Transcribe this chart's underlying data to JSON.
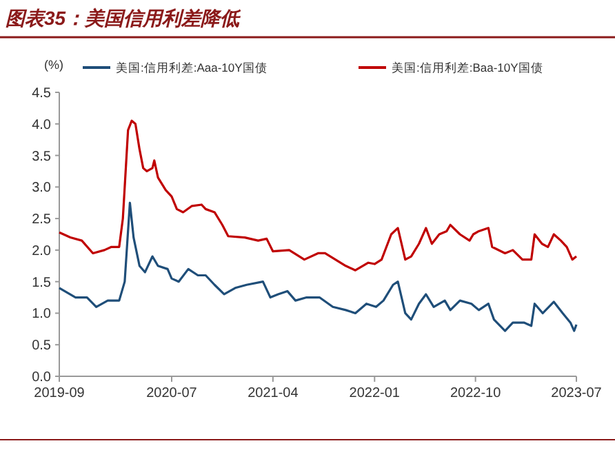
{
  "chart_data": {
    "type": "line",
    "title": "图表35：美国信用利差降低",
    "ylabel": "(%)",
    "xlim": [
      "2019-09",
      "2023-07"
    ],
    "xticks": [
      "2019-09",
      "2020-07",
      "2021-04",
      "2022-01",
      "2022-10",
      "2023-07"
    ],
    "ylim": [
      0,
      4.5
    ],
    "yticks": [
      {
        "value": 0,
        "label": "0.0"
      },
      {
        "value": 0.5,
        "label": "0.5"
      },
      {
        "value": 1,
        "label": "1.0"
      },
      {
        "value": 1.5,
        "label": "1.5"
      },
      {
        "value": 2,
        "label": "2.0"
      },
      {
        "value": 2.5,
        "label": "2.5"
      },
      {
        "value": 3,
        "label": "3.0"
      },
      {
        "value": 3.5,
        "label": "3.5"
      },
      {
        "value": 4,
        "label": "4.0"
      },
      {
        "value": 4.5,
        "label": "4.5"
      }
    ],
    "grid": false,
    "legend": "top",
    "line_style": "solid",
    "marker": "none",
    "series": [
      {
        "name": "美国:信用利差:Aaa-10Y国债",
        "color": "#1f4e79",
        "x": [
          "2019-09-01",
          "2019-10-15",
          "2019-11-15",
          "2019-12-10",
          "2020-01-10",
          "2020-02-10",
          "2020-02-25",
          "2020-03-10",
          "2020-03-20",
          "2020-04-05",
          "2020-04-20",
          "2020-05-10",
          "2020-05-25",
          "2020-06-20",
          "2020-07-01",
          "2020-07-20",
          "2020-08-15",
          "2020-09-10",
          "2020-10-01",
          "2020-10-25",
          "2020-11-20",
          "2020-12-20",
          "2021-01-20",
          "2021-03-05",
          "2021-03-25",
          "2021-04-15",
          "2021-05-10",
          "2021-06-01",
          "2021-07-01",
          "2021-08-05",
          "2021-09-10",
          "2021-10-15",
          "2021-11-10",
          "2021-12-10",
          "2022-01-05",
          "2022-01-25",
          "2022-02-20",
          "2022-03-05",
          "2022-03-25",
          "2022-04-10",
          "2022-05-01",
          "2022-05-20",
          "2022-06-10",
          "2022-07-10",
          "2022-07-25",
          "2022-08-20",
          "2022-09-20",
          "2022-10-10",
          "2022-11-05",
          "2022-11-20",
          "2022-12-20",
          "2023-01-10",
          "2023-02-10",
          "2023-03-01",
          "2023-03-10",
          "2023-04-01",
          "2023-05-01",
          "2023-05-25",
          "2023-06-15",
          "2023-06-25",
          "2023-07-01"
        ],
        "values": [
          1.4,
          1.25,
          1.25,
          1.1,
          1.2,
          1.2,
          1.5,
          2.75,
          2.2,
          1.75,
          1.65,
          1.9,
          1.75,
          1.7,
          1.55,
          1.5,
          1.7,
          1.6,
          1.6,
          1.45,
          1.3,
          1.4,
          1.45,
          1.5,
          1.25,
          1.3,
          1.35,
          1.2,
          1.25,
          1.25,
          1.1,
          1.05,
          1.0,
          1.15,
          1.1,
          1.2,
          1.45,
          1.5,
          1.0,
          0.9,
          1.15,
          1.3,
          1.1,
          1.2,
          1.05,
          1.2,
          1.15,
          1.05,
          1.15,
          0.9,
          0.72,
          0.85,
          0.85,
          0.8,
          1.15,
          1.0,
          1.18,
          1.0,
          0.85,
          0.72,
          0.82
        ]
      },
      {
        "name": "美国:信用利差:Baa-10Y国债",
        "color": "#c00000",
        "x": [
          "2019-09-01",
          "2019-10-01",
          "2019-11-01",
          "2019-12-01",
          "2020-01-01",
          "2020-01-20",
          "2020-02-10",
          "2020-02-20",
          "2020-03-05",
          "2020-03-15",
          "2020-03-25",
          "2020-04-05",
          "2020-04-15",
          "2020-04-25",
          "2020-05-10",
          "2020-05-15",
          "2020-05-25",
          "2020-06-15",
          "2020-07-01",
          "2020-07-15",
          "2020-08-01",
          "2020-08-25",
          "2020-09-20",
          "2020-10-01",
          "2020-10-25",
          "2020-11-15",
          "2020-12-01",
          "2021-01-15",
          "2021-02-20",
          "2021-03-15",
          "2021-04-01",
          "2021-05-15",
          "2021-06-25",
          "2021-08-01",
          "2021-08-20",
          "2021-10-15",
          "2021-11-10",
          "2021-12-15",
          "2022-01-01",
          "2022-01-20",
          "2022-02-15",
          "2022-03-05",
          "2022-03-25",
          "2022-04-10",
          "2022-05-01",
          "2022-05-20",
          "2022-06-05",
          "2022-06-25",
          "2022-07-15",
          "2022-07-25",
          "2022-08-20",
          "2022-09-15",
          "2022-09-25",
          "2022-10-10",
          "2022-11-05",
          "2022-11-15",
          "2022-12-20",
          "2023-01-10",
          "2023-02-05",
          "2023-03-01",
          "2023-03-10",
          "2023-03-30",
          "2023-04-15",
          "2023-05-01",
          "2023-05-20",
          "2023-06-05",
          "2023-06-20",
          "2023-07-01"
        ],
        "values": [
          2.28,
          2.2,
          2.15,
          1.95,
          2.0,
          2.05,
          2.05,
          2.5,
          3.9,
          4.05,
          4.0,
          3.6,
          3.3,
          3.25,
          3.3,
          3.42,
          3.15,
          2.95,
          2.85,
          2.65,
          2.6,
          2.7,
          2.72,
          2.65,
          2.6,
          2.4,
          2.22,
          2.2,
          2.15,
          2.18,
          1.98,
          2.0,
          1.85,
          1.95,
          1.95,
          1.75,
          1.68,
          1.8,
          1.78,
          1.85,
          2.25,
          2.35,
          1.85,
          1.9,
          2.1,
          2.35,
          2.1,
          2.25,
          2.3,
          2.4,
          2.25,
          2.15,
          2.25,
          2.3,
          2.35,
          2.05,
          1.95,
          2.0,
          1.85,
          1.85,
          2.25,
          2.1,
          2.05,
          2.25,
          2.15,
          2.05,
          1.85,
          1.9
        ]
      }
    ]
  }
}
